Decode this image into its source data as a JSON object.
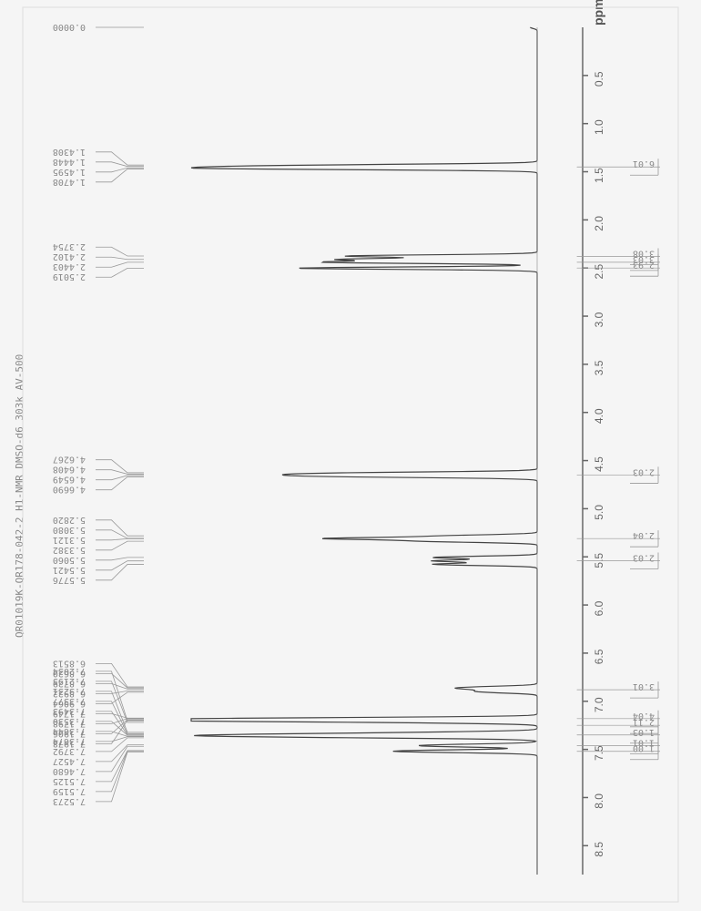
{
  "header": "QR01019K-QR178-042-2    H1-NMR    DMSO-d6    303k AV-500",
  "spectrum": {
    "type": "line",
    "orientation": "rotated-90",
    "x_axis": {
      "label": "ppm",
      "min": 0,
      "max": 8.8,
      "ticks": [
        0.5,
        1.0,
        1.5,
        2.0,
        2.5,
        3.0,
        3.5,
        4.0,
        4.5,
        5.0,
        5.5,
        6.0,
        6.5,
        7.0,
        7.5,
        8.0,
        8.5
      ],
      "tick_fontsize": 12,
      "tick_color": "#666"
    },
    "background_color": "#f5f5f5",
    "line_color": "#444444",
    "line_width": 1.2,
    "baseline_color": "#888",
    "peaks": [
      {
        "ppm": 0.0,
        "height": 0.02
      },
      {
        "ppm": 1.4308,
        "height": 0.4
      },
      {
        "ppm": 1.4448,
        "height": 0.45
      },
      {
        "ppm": 1.4595,
        "height": 0.45
      },
      {
        "ppm": 1.4708,
        "height": 0.5
      },
      {
        "ppm": 2.3754,
        "height": 0.55
      },
      {
        "ppm": 2.4102,
        "height": 0.55
      },
      {
        "ppm": 2.4403,
        "height": 0.6
      },
      {
        "ppm": 2.5019,
        "height": 0.7
      },
      {
        "ppm": 4.6267,
        "height": 0.35
      },
      {
        "ppm": 4.6408,
        "height": 0.35
      },
      {
        "ppm": 4.6549,
        "height": 0.35
      },
      {
        "ppm": 4.669,
        "height": 0.35
      },
      {
        "ppm": 5.282,
        "height": 0.25
      },
      {
        "ppm": 5.308,
        "height": 0.3
      },
      {
        "ppm": 5.3121,
        "height": 0.3
      },
      {
        "ppm": 5.3382,
        "height": 0.3
      },
      {
        "ppm": 5.506,
        "height": 0.3
      },
      {
        "ppm": 5.5421,
        "height": 0.3
      },
      {
        "ppm": 5.5776,
        "height": 0.3
      },
      {
        "ppm": 6.8513,
        "height": 0.1
      },
      {
        "ppm": 6.862,
        "height": 0.1
      },
      {
        "ppm": 6.8729,
        "height": 0.1
      },
      {
        "ppm": 6.8922,
        "height": 0.1
      },
      {
        "ppm": 6.9064,
        "height": 0.1
      },
      {
        "ppm": 7.1749,
        "height": 0.3
      },
      {
        "ppm": 7.1798,
        "height": 0.3
      },
      {
        "ppm": 7.1906,
        "height": 0.38
      },
      {
        "ppm": 7.1978,
        "height": 0.38
      },
      {
        "ppm": 7.2034,
        "height": 0.38
      },
      {
        "ppm": 7.2195,
        "height": 0.25
      },
      {
        "ppm": 7.3231,
        "height": 0.2
      },
      {
        "ppm": 7.3377,
        "height": 0.28
      },
      {
        "ppm": 7.3493,
        "height": 0.28
      },
      {
        "ppm": 7.353,
        "height": 0.28
      },
      {
        "ppm": 7.3644,
        "height": 0.25
      },
      {
        "ppm": 7.3674,
        "height": 0.25
      },
      {
        "ppm": 7.3792,
        "height": 0.22
      },
      {
        "ppm": 7.4527,
        "height": 0.2
      },
      {
        "ppm": 7.468,
        "height": 0.22
      },
      {
        "ppm": 7.5125,
        "height": 0.15
      },
      {
        "ppm": 7.5159,
        "height": 0.15
      },
      {
        "ppm": 7.5273,
        "height": 0.18
      }
    ],
    "peak_labels": [
      "0.0000",
      "1.4308",
      "1.4448",
      "1.4595",
      "1.4708",
      "2.3754",
      "2.4102",
      "2.4403",
      "2.5019",
      "4.6267",
      "4.6408",
      "4.6549",
      "4.6690",
      "5.2820",
      "5.3080",
      "5.3121",
      "5.3382",
      "5.5060",
      "5.5421",
      "5.5776",
      "6.8513",
      "6.8620",
      "6.8729",
      "6.8922",
      "6.9064",
      "7.1749",
      "7.1798",
      "7.1906",
      "7.1978",
      "7.2034",
      "7.2195",
      "7.3231",
      "7.3377",
      "7.3493",
      "7.3530",
      "7.3644",
      "7.3674",
      "7.3792",
      "7.4527",
      "7.4680",
      "7.5125",
      "7.5159",
      "7.5273"
    ],
    "integrals": [
      {
        "ppm": 1.45,
        "value": "6.01"
      },
      {
        "ppm": 2.38,
        "value": "3.08"
      },
      {
        "ppm": 2.44,
        "value": "3.03"
      },
      {
        "ppm": 2.5,
        "value": "2.93"
      },
      {
        "ppm": 4.65,
        "value": "2.03"
      },
      {
        "ppm": 5.31,
        "value": "2.04"
      },
      {
        "ppm": 5.54,
        "value": "2.03"
      },
      {
        "ppm": 6.88,
        "value": "3.01"
      },
      {
        "ppm": 7.18,
        "value": "4.04"
      },
      {
        "ppm": 7.25,
        "value": "2.11"
      },
      {
        "ppm": 7.35,
        "value": "1.03"
      },
      {
        "ppm": 7.46,
        "value": "1.01"
      },
      {
        "ppm": 7.52,
        "value": "1.00"
      }
    ],
    "label_color": "#888",
    "label_fontsize": 10,
    "integral_box_border": "#888"
  }
}
